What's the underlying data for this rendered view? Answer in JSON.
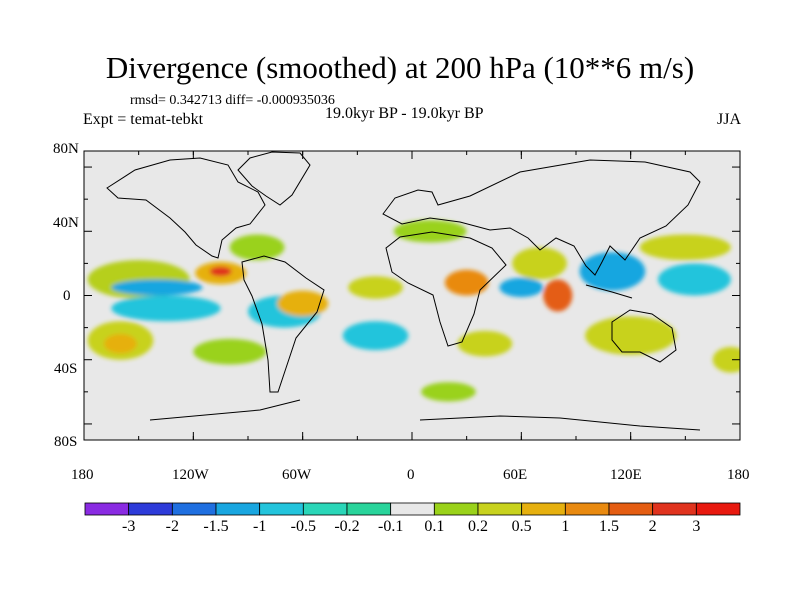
{
  "title": "Divergence (smoothed) at 200 hPa (10**6 m/s)",
  "stats": "rmsd= 0.342713 diff= -0.000935036",
  "experiment": "Expt = temat-tebkt",
  "period": "19.0kyr BP - 19.0kyr BP",
  "season": "JJA",
  "axes": {
    "lat_labels": [
      "80N",
      "40N",
      "0",
      "40S",
      "80S"
    ],
    "lon_labels": [
      "180",
      "120W",
      "60W",
      "0",
      "60E",
      "120E",
      "180"
    ]
  },
  "colorbar": {
    "labels": [
      "-3",
      "-2",
      "-1.5",
      "-1",
      "-0.5",
      "-0.2",
      "-0.1",
      "0.1",
      "0.2",
      "0.5",
      "1",
      "1.5",
      "2",
      "3"
    ],
    "colors": [
      "#8a2be2",
      "#2d3bd9",
      "#1f6fe0",
      "#19a6e0",
      "#23c4dc",
      "#2ad6b8",
      "#29d49b",
      "#e8e8e8",
      "#9ad21a",
      "#c8d21e",
      "#e6b00f",
      "#e98a10",
      "#e45d12",
      "#e0331e",
      "#e8190f"
    ]
  },
  "map_colors": {
    "background": "#e8e8e8",
    "coast": "#000000"
  },
  "field_blobs": [
    {
      "level": "0.2",
      "color": "#b6cf1f",
      "lon": -150,
      "lat": 10,
      "rx": 28,
      "ry": 12
    },
    {
      "level": "1",
      "color": "#e6b00f",
      "lon": -105,
      "lat": 14,
      "rx": 14,
      "ry": 7
    },
    {
      "level": "2",
      "color": "#e0331e",
      "lon": -105,
      "lat": 15,
      "rx": 6,
      "ry": 3
    },
    {
      "level": "-0.5",
      "color": "#23c4dc",
      "lon": -135,
      "lat": -8,
      "rx": 30,
      "ry": 8
    },
    {
      "level": "-1",
      "color": "#19a6e0",
      "lon": -140,
      "lat": 5,
      "rx": 25,
      "ry": 5
    },
    {
      "level": "0.5",
      "color": "#c8d21e",
      "lon": -160,
      "lat": -28,
      "rx": 18,
      "ry": 12
    },
    {
      "level": "1",
      "color": "#e6b00f",
      "lon": -160,
      "lat": -30,
      "rx": 9,
      "ry": 6
    },
    {
      "level": "0.2",
      "color": "#9ad21a",
      "lon": -85,
      "lat": 30,
      "rx": 15,
      "ry": 8
    },
    {
      "level": "-0.5",
      "color": "#23c4dc",
      "lon": -70,
      "lat": -10,
      "rx": 20,
      "ry": 10
    },
    {
      "level": "1",
      "color": "#e6b00f",
      "lon": -60,
      "lat": -5,
      "rx": 14,
      "ry": 8
    },
    {
      "level": "-0.5",
      "color": "#23c4dc",
      "lon": -20,
      "lat": -25,
      "rx": 18,
      "ry": 9
    },
    {
      "level": "0.5",
      "color": "#c8d21e",
      "lon": -20,
      "lat": 5,
      "rx": 15,
      "ry": 7
    },
    {
      "level": "1",
      "color": "#e98a10",
      "lon": 30,
      "lat": 8,
      "rx": 12,
      "ry": 8
    },
    {
      "level": "0.5",
      "color": "#c8d21e",
      "lon": 70,
      "lat": 20,
      "rx": 15,
      "ry": 10
    },
    {
      "level": "2",
      "color": "#e45d12",
      "lon": 80,
      "lat": 0,
      "rx": 8,
      "ry": 10
    },
    {
      "level": "-1",
      "color": "#19a6e0",
      "lon": 60,
      "lat": 5,
      "rx": 12,
      "ry": 6
    },
    {
      "level": "-1",
      "color": "#19a6e0",
      "lon": 110,
      "lat": 15,
      "rx": 18,
      "ry": 12
    },
    {
      "level": "-0.5",
      "color": "#23c4dc",
      "lon": 155,
      "lat": 10,
      "rx": 20,
      "ry": 10
    },
    {
      "level": "0.5",
      "color": "#c8d21e",
      "lon": 150,
      "lat": 30,
      "rx": 25,
      "ry": 8
    },
    {
      "level": "0.5",
      "color": "#c8d21e",
      "lon": 120,
      "lat": -25,
      "rx": 25,
      "ry": 12
    },
    {
      "level": "0.2",
      "color": "#9ad21a",
      "lon": 10,
      "lat": 40,
      "rx": 20,
      "ry": 7
    },
    {
      "level": "0.2",
      "color": "#9ad21a",
      "lon": 20,
      "lat": -60,
      "rx": 15,
      "ry": 6
    },
    {
      "level": "0.5",
      "color": "#c8d21e",
      "lon": 40,
      "lat": -30,
      "rx": 15,
      "ry": 8
    },
    {
      "level": "0.2",
      "color": "#9ad21a",
      "lon": -100,
      "lat": -35,
      "rx": 20,
      "ry": 8
    },
    {
      "level": "0.5",
      "color": "#c8d21e",
      "lon": 175,
      "lat": -40,
      "rx": 10,
      "ry": 8
    }
  ]
}
